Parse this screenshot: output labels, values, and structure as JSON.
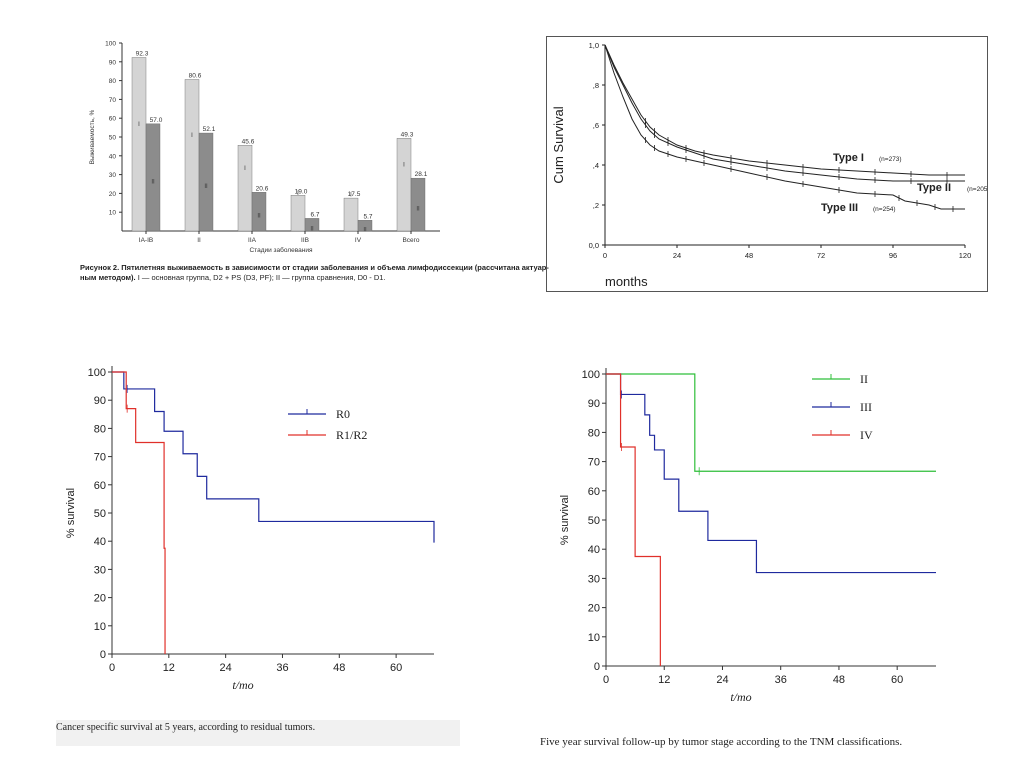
{
  "colors": {
    "light_bar": "#d4d4d4",
    "dark_bar": "#8c8c8c",
    "km_black": "#222222",
    "km_blue": "#1f2a9e",
    "km_red": "#e0302a",
    "km_green": "#2fbf3a",
    "axis": "#333333"
  },
  "chart_data": [
    {
      "type": "bar",
      "ylabel": "Выживаемость, %",
      "xlabel": "Стадии заболевания",
      "ylim": [
        0,
        100
      ],
      "yticks": [
        "10",
        "20",
        "30",
        "40",
        "50",
        "60",
        "70",
        "80",
        "90",
        "100"
      ],
      "categories": [
        "IA-IB",
        "II",
        "IIA",
        "IIB",
        "IV",
        "Всего"
      ],
      "series": [
        {
          "name": "I",
          "values": [
            92.3,
            80.6,
            45.6,
            19.0,
            17.5,
            49.3
          ],
          "labels": [
            "92.3",
            "80.6",
            "45.6",
            "19.0",
            "17.5",
            "49.3"
          ]
        },
        {
          "name": "II",
          "values": [
            57.0,
            52.1,
            20.6,
            6.7,
            5.7,
            28.1
          ],
          "labels": [
            "57.0",
            "52.1",
            "20.6",
            "6.7",
            "5.7",
            "28.1"
          ]
        }
      ],
      "caption_bold": "Рисунок 2. Пятилетняя выживаемость в зависимости от стадии заболевания и объема лимфодиссекции (рассчитана актуар-",
      "caption_line2_bold": "ным методом).",
      "caption_line2_rest": " I — основная группа, D2 + PS (D3, PF); II — группа сравнения, D0 - D1."
    },
    {
      "type": "line",
      "ylabel": "Cum Survival",
      "xlabel": "months",
      "xlim": [
        0,
        120
      ],
      "ylim": [
        0,
        1
      ],
      "xticks": [
        "0",
        "24",
        "48",
        "72",
        "96",
        "120"
      ],
      "yticks": [
        "0,0",
        ",2",
        ",4",
        ",6",
        ",8",
        "1,0"
      ],
      "series": [
        {
          "name": "Type I",
          "n": "(n=273)",
          "x": [
            0,
            3,
            6,
            9,
            12,
            15,
            18,
            24,
            30,
            36,
            48,
            60,
            72,
            84,
            96,
            108,
            120
          ],
          "y": [
            1,
            0.9,
            0.81,
            0.73,
            0.65,
            0.59,
            0.55,
            0.5,
            0.47,
            0.45,
            0.42,
            0.4,
            0.38,
            0.37,
            0.36,
            0.35,
            0.35
          ]
        },
        {
          "name": "Type II",
          "n": "(n=205)",
          "x": [
            0,
            3,
            6,
            9,
            12,
            15,
            18,
            24,
            30,
            36,
            48,
            60,
            72,
            84,
            96,
            108,
            120
          ],
          "y": [
            1,
            0.89,
            0.8,
            0.71,
            0.63,
            0.57,
            0.53,
            0.49,
            0.46,
            0.43,
            0.4,
            0.37,
            0.35,
            0.33,
            0.32,
            0.32,
            0.32
          ]
        },
        {
          "name": "Type III",
          "n": "(n=254)",
          "x": [
            0,
            3,
            6,
            9,
            12,
            15,
            18,
            24,
            30,
            36,
            48,
            60,
            72,
            84,
            96,
            100,
            108,
            112,
            120
          ],
          "y": [
            1,
            0.86,
            0.74,
            0.63,
            0.55,
            0.5,
            0.47,
            0.44,
            0.42,
            0.4,
            0.36,
            0.32,
            0.29,
            0.26,
            0.25,
            0.22,
            0.2,
            0.18,
            0.18
          ]
        }
      ]
    },
    {
      "type": "line",
      "ylabel": "% survival",
      "xlabel": "t/mo",
      "xlim": [
        0,
        68
      ],
      "ylim": [
        0,
        100
      ],
      "xticks": [
        "0",
        "12",
        "24",
        "36",
        "48",
        "60"
      ],
      "yticks": [
        "0",
        "10",
        "20",
        "30",
        "40",
        "50",
        "60",
        "70",
        "80",
        "90",
        "100"
      ],
      "series": [
        {
          "name": "R0",
          "x": [
            0,
            2,
            2.5,
            8.5,
            9,
            11,
            15,
            18,
            20,
            31,
            68
          ],
          "y": [
            100,
            100,
            94,
            94,
            86,
            79,
            71,
            63,
            55,
            47,
            39.5
          ]
        },
        {
          "name": "R1/R2",
          "x": [
            0,
            2,
            3,
            5,
            5.5,
            11,
            11.2
          ],
          "y": [
            100,
            100,
            87,
            75,
            75,
            37.5,
            0
          ]
        }
      ],
      "caption": "Cancer specific survival at 5 years, according to residual tumors."
    },
    {
      "type": "line",
      "ylabel": "% survival",
      "xlabel": "t/mo",
      "xlim": [
        0,
        68
      ],
      "ylim": [
        0,
        100
      ],
      "xticks": [
        "0",
        "12",
        "24",
        "36",
        "48",
        "60"
      ],
      "yticks": [
        "0",
        "10",
        "20",
        "30",
        "40",
        "50",
        "60",
        "70",
        "80",
        "90",
        "100"
      ],
      "series": [
        {
          "name": "II",
          "x": [
            0,
            18,
            18.3,
            68
          ],
          "y": [
            100,
            100,
            66.7,
            66.7
          ]
        },
        {
          "name": "III",
          "x": [
            0,
            2,
            3,
            7,
            8,
            9,
            10,
            12,
            15,
            21,
            31,
            68
          ],
          "y": [
            100,
            100,
            93,
            93,
            86,
            79,
            74,
            64,
            53,
            43,
            32,
            32
          ]
        },
        {
          "name": "IV",
          "x": [
            0,
            2,
            3,
            5,
            6,
            11,
            11.2
          ],
          "y": [
            100,
            100,
            75,
            75,
            37.5,
            37.5,
            0
          ]
        }
      ],
      "caption": "Five year survival follow-up by tumor stage according to the TNM classifications."
    }
  ]
}
